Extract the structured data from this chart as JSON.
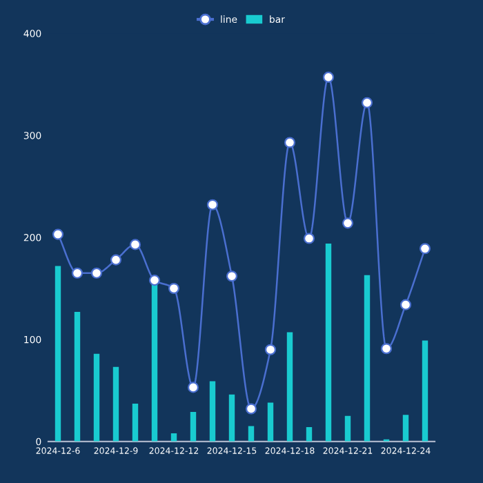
{
  "chart_data": {
    "type": "bar",
    "categories": [
      "2024-12-6",
      null,
      null,
      "2024-12-9",
      null,
      null,
      "2024-12-12",
      null,
      null,
      "2024-12-15",
      null,
      null,
      "2024-12-18",
      null,
      null,
      "2024-12-21",
      null,
      null,
      "2024-12-24",
      null
    ],
    "series": [
      {
        "name": "line",
        "type": "line",
        "color": "#4a6fd0",
        "marker": "circle",
        "line_style": "solid",
        "values": [
          203,
          165,
          165,
          178,
          193,
          158,
          150,
          53,
          232,
          162,
          32,
          90,
          293,
          199,
          357,
          214,
          332,
          91,
          134,
          189
        ]
      },
      {
        "name": "bar",
        "color": "#19cbd0",
        "values": [
          172,
          127,
          86,
          73,
          37,
          158,
          8,
          29,
          59,
          46,
          15,
          38,
          107,
          14,
          194,
          25,
          163,
          2,
          26,
          99
        ]
      }
    ],
    "ylim": [
      0,
      400
    ],
    "yticks": [
      0,
      100,
      200,
      300,
      400
    ],
    "grid": false,
    "legend": "top"
  }
}
